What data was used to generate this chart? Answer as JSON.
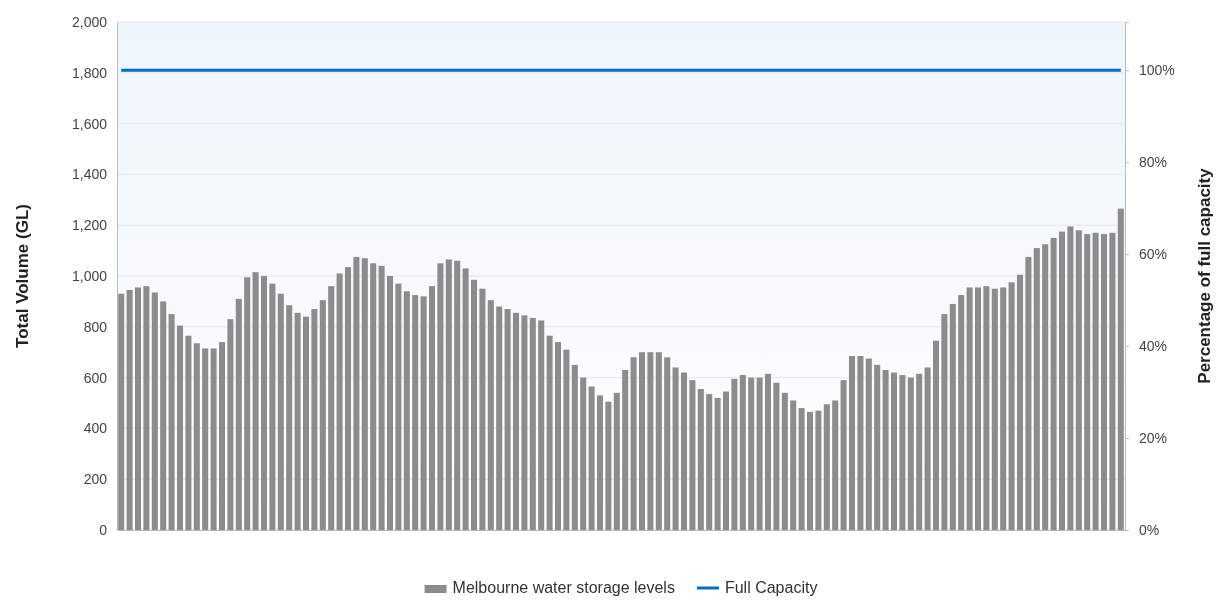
{
  "chart_data": {
    "type": "bar",
    "ylabel": "Total Volume (GL)",
    "y2label": "Percentage of full capacity",
    "categories": [
      null,
      null,
      null,
      null,
      null,
      null,
      null,
      null,
      null,
      null,
      null,
      null,
      null,
      null,
      null,
      null,
      null,
      null,
      null,
      null,
      null,
      null,
      null,
      null,
      null,
      null,
      null,
      null,
      null,
      null,
      null,
      null,
      null,
      null,
      null,
      null,
      null,
      null,
      null,
      null,
      null,
      null,
      null,
      null,
      null,
      null,
      null,
      null,
      null,
      null,
      null,
      null,
      null,
      null,
      null,
      null,
      null,
      null,
      null,
      null,
      null,
      null,
      null,
      null,
      null,
      null,
      null,
      null,
      null,
      null,
      null,
      null,
      null,
      null,
      null,
      null,
      null,
      null,
      null,
      null,
      null,
      null,
      null,
      null,
      null,
      null,
      null,
      null,
      null,
      null,
      null,
      null,
      null,
      null,
      null,
      null,
      null,
      null,
      null,
      null,
      null,
      null,
      null,
      null,
      null,
      null,
      null,
      null,
      null,
      null,
      null,
      null,
      null,
      null,
      null,
      null,
      null,
      null,
      null,
      null
    ],
    "series": [
      {
        "name": "Melbourne water storage levels",
        "color": "#8c8c8c",
        "values": [
          930,
          945,
          955,
          960,
          935,
          900,
          850,
          805,
          765,
          735,
          715,
          715,
          740,
          830,
          910,
          995,
          1015,
          1000,
          970,
          930,
          885,
          855,
          840,
          870,
          905,
          960,
          1010,
          1035,
          1075,
          1070,
          1050,
          1040,
          1000,
          970,
          940,
          925,
          920,
          960,
          1050,
          1065,
          1060,
          1030,
          985,
          950,
          905,
          880,
          870,
          855,
          845,
          835,
          825,
          765,
          740,
          710,
          650,
          600,
          565,
          530,
          505,
          540,
          630,
          680,
          700,
          700,
          700,
          680,
          640,
          620,
          590,
          555,
          535,
          520,
          545,
          595,
          610,
          600,
          600,
          615,
          580,
          540,
          510,
          480,
          465,
          470,
          495,
          510,
          590,
          685,
          685,
          675,
          650,
          630,
          620,
          610,
          600,
          615,
          640,
          745,
          850,
          890,
          925,
          955,
          955,
          960,
          950,
          955,
          975,
          1005,
          1075,
          1110,
          1125,
          1150,
          1175,
          1195,
          1180,
          1165,
          1170,
          1165,
          1170,
          1265
        ]
      },
      {
        "name": "Full Capacity",
        "type": "line",
        "color": "#0070c0",
        "values": [
          1810,
          1810,
          1810,
          1810,
          1810,
          1810,
          1810,
          1810,
          1810,
          1810,
          1810,
          1810,
          1810,
          1810,
          1810,
          1810,
          1810,
          1810,
          1810,
          1810,
          1810,
          1810,
          1810,
          1810,
          1810,
          1810,
          1810,
          1810,
          1810,
          1810,
          1810,
          1810,
          1810,
          1810,
          1810,
          1810,
          1810,
          1810,
          1810,
          1810,
          1810,
          1810,
          1810,
          1810,
          1810,
          1810,
          1810,
          1810,
          1810,
          1810,
          1810,
          1810,
          1810,
          1810,
          1810,
          1810,
          1810,
          1810,
          1810,
          1810,
          1810,
          1810,
          1810,
          1810,
          1810,
          1810,
          1810,
          1810,
          1810,
          1810,
          1810,
          1810,
          1810,
          1810,
          1810,
          1810,
          1810,
          1810,
          1810,
          1810,
          1810,
          1810,
          1810,
          1810,
          1810,
          1810,
          1810,
          1810,
          1810,
          1810,
          1810,
          1810,
          1810,
          1810,
          1810,
          1810,
          1810,
          1810,
          1810,
          1810,
          1810,
          1810,
          1810,
          1810,
          1810,
          1810,
          1810,
          1810,
          1810,
          1810,
          1810,
          1810,
          1810,
          1810,
          1810,
          1810,
          1810,
          1810,
          1810,
          1810
        ]
      }
    ],
    "ylim": [
      0,
      2000
    ],
    "yticks": [
      {
        "value": 0,
        "label": "0"
      },
      {
        "value": 200,
        "label": "200"
      },
      {
        "value": 400,
        "label": "400"
      },
      {
        "value": 600,
        "label": "600"
      },
      {
        "value": 800,
        "label": "800"
      },
      {
        "value": 1000,
        "label": "1,000"
      },
      {
        "value": 1200,
        "label": "1,200"
      },
      {
        "value": 1400,
        "label": "1,400"
      },
      {
        "value": 1600,
        "label": "1,600"
      },
      {
        "value": 1800,
        "label": "1,800"
      },
      {
        "value": 2000,
        "label": "2,000"
      }
    ],
    "y2lim": [
      0,
      110.5
    ],
    "y2ticks": [
      {
        "value": 0,
        "label": "0%"
      },
      {
        "value": 20,
        "label": "20%"
      },
      {
        "value": 40,
        "label": "40%"
      },
      {
        "value": 60,
        "label": "60%"
      },
      {
        "value": 80,
        "label": "80%"
      },
      {
        "value": 100,
        "label": "100%"
      }
    ],
    "grid": "y",
    "legend": "bottom"
  }
}
